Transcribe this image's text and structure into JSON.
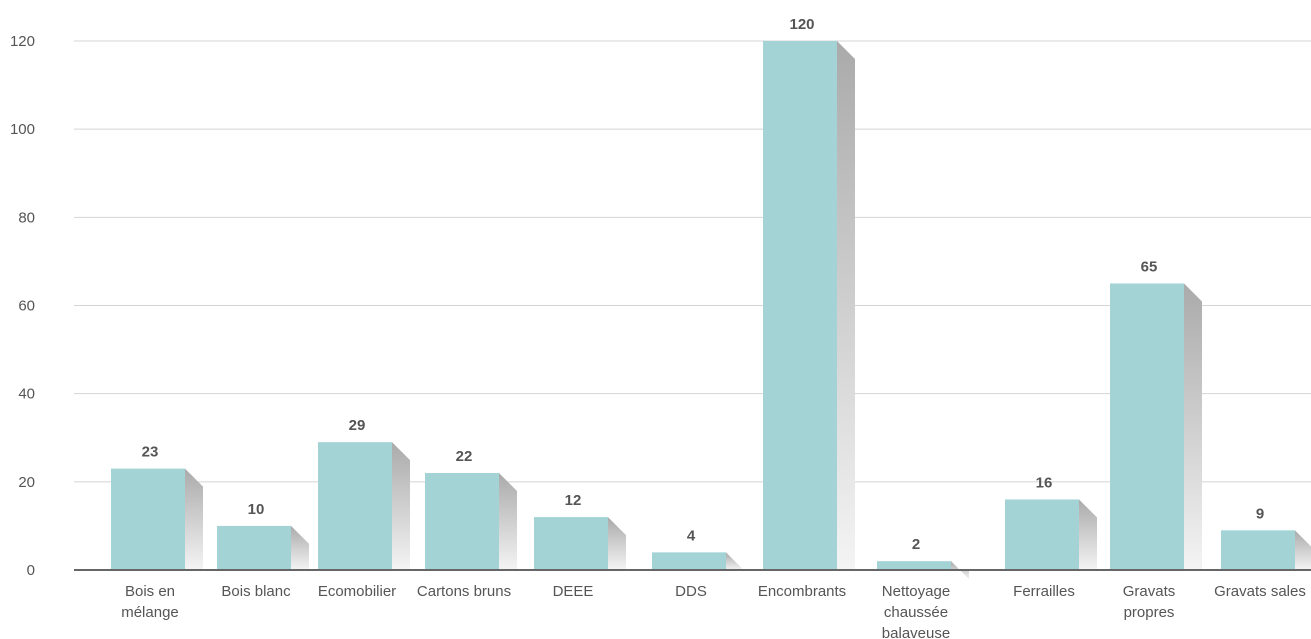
{
  "chart_data": {
    "type": "bar",
    "categories": [
      "Bois en mélange",
      "Bois blanc",
      "Ecomobilier",
      "Cartons bruns",
      "DEEE",
      "DDS",
      "Encombrants",
      "Nettoyage chaussée balaveuse",
      "Ferrailles",
      "Gravats propres",
      "Gravats sales"
    ],
    "category_lines": [
      [
        "Bois en",
        "mélange"
      ],
      [
        "Bois blanc"
      ],
      [
        "Ecomobilier"
      ],
      [
        "Cartons bruns"
      ],
      [
        "DEEE"
      ],
      [
        "DDS"
      ],
      [
        "Encombrants"
      ],
      [
        "Nettoyage",
        "chaussée",
        "balaveuse"
      ],
      [
        "Ferrailles"
      ],
      [
        "Gravats",
        "propres"
      ],
      [
        "Gravats sales"
      ]
    ],
    "values": [
      23,
      10,
      29,
      22,
      12,
      4,
      120,
      2,
      16,
      65,
      9
    ],
    "title": "",
    "xlabel": "",
    "ylabel": "",
    "ylim": [
      0,
      120
    ],
    "yticks": [
      0,
      20,
      40,
      60,
      80,
      100,
      120
    ],
    "grid": true,
    "legend": "none",
    "colors": {
      "bar": "#a3d3d5",
      "shadow_dark": "#aaaaaa",
      "shadow_light": "#f4f4f4",
      "grid": "#d4d4d4",
      "axis": "#666666",
      "text": "#555555"
    }
  }
}
